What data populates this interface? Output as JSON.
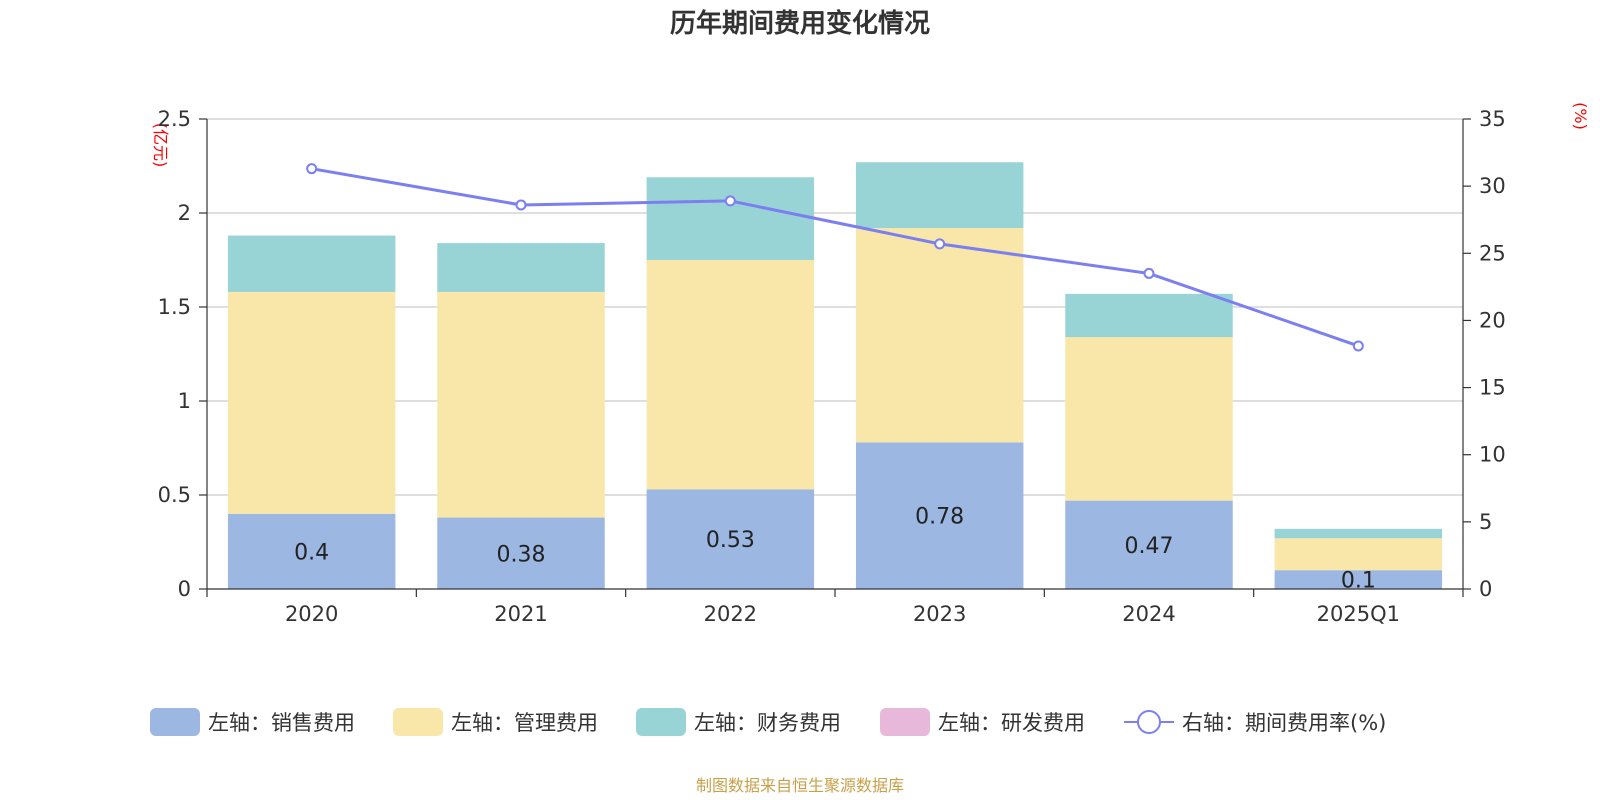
{
  "chart_data": {
    "type": "bar",
    "title": "历年期间费用变化情况",
    "categories": [
      "2020",
      "2021",
      "2022",
      "2023",
      "2024",
      "2025Q1"
    ],
    "left_axis": {
      "unit": "(亿元)",
      "ylim": [
        0,
        2.5
      ],
      "ticks": [
        "0",
        "0.5",
        "1",
        "1.5",
        "2",
        "2.5"
      ]
    },
    "right_axis": {
      "unit": "(%)",
      "ylim": [
        0,
        35
      ],
      "ticks": [
        "0",
        "5",
        "10",
        "15",
        "20",
        "25",
        "30",
        "35"
      ]
    },
    "series": [
      {
        "name": "左轴：销售费用",
        "type": "bar",
        "stack": true,
        "color": "#9bb7e2",
        "values": [
          0.4,
          0.38,
          0.53,
          0.78,
          0.47,
          0.1
        ],
        "labels": [
          "0.4",
          "0.38",
          "0.53",
          "0.78",
          "0.47",
          "0.1"
        ]
      },
      {
        "name": "左轴：管理费用",
        "type": "bar",
        "stack": true,
        "color": "#f8e7a8",
        "values": [
          1.18,
          1.2,
          1.22,
          1.14,
          0.87,
          0.17
        ]
      },
      {
        "name": "左轴：财务费用",
        "type": "bar",
        "stack": true,
        "color": "#98d4d5",
        "values": [
          0.3,
          0.26,
          0.44,
          0.35,
          0.23,
          0.05
        ]
      },
      {
        "name": "左轴：研发费用",
        "type": "bar",
        "stack": true,
        "color": "#e8b8da",
        "values": [
          0,
          0,
          0,
          0,
          0,
          0
        ]
      },
      {
        "name": "右轴：期间费用率(%)",
        "type": "line",
        "axis": "right",
        "color": "#7b7ff0",
        "values": [
          31.3,
          28.6,
          28.9,
          25.7,
          23.5,
          18.1
        ]
      }
    ],
    "grid": true,
    "legend_position": "bottom"
  },
  "footer": {
    "source": "制图数据来自恒生聚源数据库"
  }
}
